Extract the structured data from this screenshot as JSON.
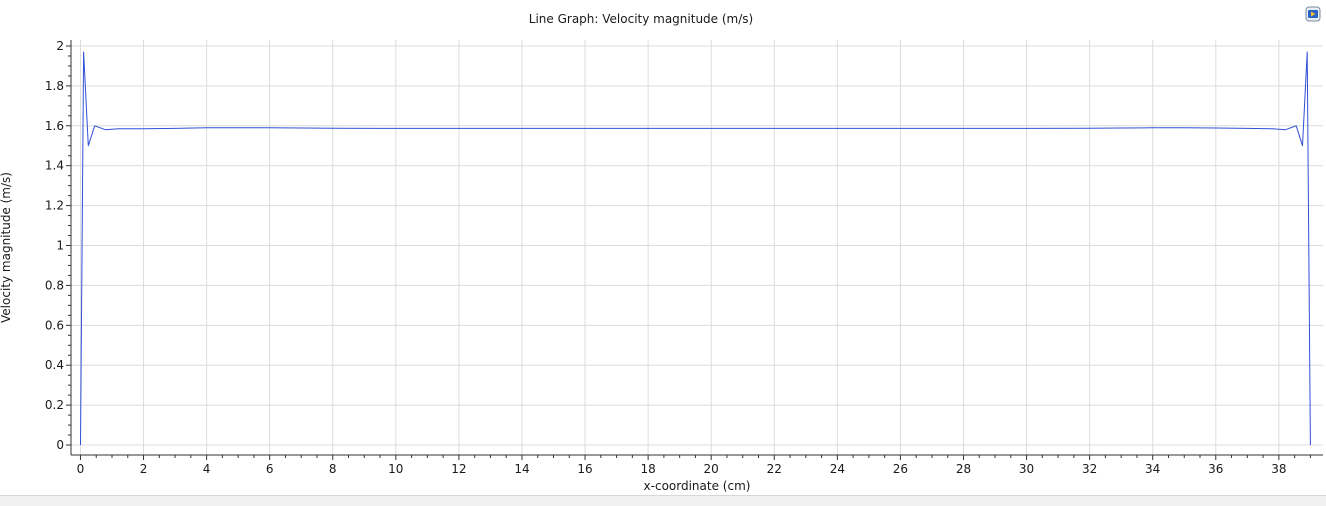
{
  "window": {
    "toolbar_icon": "play-icon"
  },
  "chart_data": {
    "type": "line",
    "title": "Line Graph: Velocity magnitude (m/s)",
    "xlabel": "x-coordinate (cm)",
    "ylabel": "Velocity magnitude (m/s)",
    "xlim": [
      -0.3,
      39.4
    ],
    "ylim": [
      -0.05,
      2.03
    ],
    "xticks": [
      "0",
      "2",
      "4",
      "6",
      "8",
      "10",
      "12",
      "14",
      "16",
      "18",
      "20",
      "22",
      "24",
      "26",
      "28",
      "30",
      "32",
      "34",
      "36",
      "38"
    ],
    "yticks": [
      "0",
      "0.2",
      "0.4",
      "0.6",
      "0.8",
      "1",
      "1.2",
      "1.4",
      "1.6",
      "1.8",
      "2"
    ],
    "grid": true,
    "series": [
      {
        "color": "#3050d8",
        "x": [
          0,
          0.1,
          0.25,
          0.45,
          0.8,
          1.2,
          2,
          3,
          4,
          5,
          6,
          8,
          10,
          12,
          14,
          16,
          18,
          20,
          22,
          24,
          26,
          28,
          30,
          32,
          33,
          34,
          35,
          36,
          37,
          37.8,
          38.2,
          38.55,
          38.75,
          38.9,
          39.0
        ],
        "y": [
          0,
          1.97,
          1.5,
          1.6,
          1.58,
          1.585,
          1.585,
          1.587,
          1.59,
          1.59,
          1.59,
          1.588,
          1.587,
          1.587,
          1.587,
          1.587,
          1.587,
          1.587,
          1.587,
          1.587,
          1.587,
          1.587,
          1.587,
          1.588,
          1.589,
          1.59,
          1.59,
          1.589,
          1.587,
          1.585,
          1.58,
          1.6,
          1.5,
          1.97,
          0
        ]
      }
    ]
  }
}
